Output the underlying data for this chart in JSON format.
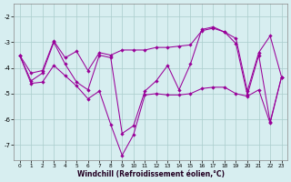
{
  "x": [
    0,
    1,
    2,
    3,
    4,
    5,
    6,
    7,
    8,
    9,
    10,
    11,
    12,
    13,
    14,
    15,
    16,
    17,
    18,
    19,
    20,
    21,
    22,
    23
  ],
  "top_line": [
    -3.5,
    -4.2,
    -4.1,
    -2.95,
    -3.6,
    -3.35,
    -4.1,
    -3.4,
    -3.5,
    -3.3,
    -3.3,
    -3.3,
    -3.2,
    -3.2,
    -3.15,
    -3.1,
    -2.55,
    -2.45,
    -2.6,
    -2.85,
    -4.9,
    -3.4,
    -2.75,
    -4.35
  ],
  "mid_line": [
    -3.5,
    -4.5,
    -4.2,
    -3.0,
    -3.85,
    -4.55,
    -4.85,
    -3.5,
    -3.6,
    -6.55,
    -6.25,
    -4.9,
    -4.5,
    -3.9,
    -4.85,
    -3.85,
    -2.5,
    -2.4,
    -2.6,
    -3.05,
    -5.05,
    -3.5,
    -6.1,
    -4.35
  ],
  "bot_line": [
    -3.5,
    -4.6,
    -4.55,
    -3.9,
    -4.3,
    -4.7,
    -5.2,
    -4.9,
    -6.2,
    -7.4,
    -6.6,
    -5.05,
    -5.0,
    -5.05,
    -5.05,
    -5.0,
    -4.8,
    -4.75,
    -4.75,
    -5.0,
    -5.1,
    -4.85,
    -6.15,
    -4.35
  ],
  "line_color": "#990099",
  "bg_color": "#d7eef0",
  "grid_color": "#aacccc",
  "xlabel": "Windchill (Refroidissement éolien,°C)",
  "ylim": [
    -7.6,
    -1.5
  ],
  "xlim": [
    -0.5,
    23.5
  ],
  "yticks": [
    -7,
    -6,
    -5,
    -4,
    -3,
    -2
  ],
  "xticks": [
    0,
    1,
    2,
    3,
    4,
    5,
    6,
    7,
    8,
    9,
    10,
    11,
    12,
    13,
    14,
    15,
    16,
    17,
    18,
    19,
    20,
    21,
    22,
    23
  ]
}
